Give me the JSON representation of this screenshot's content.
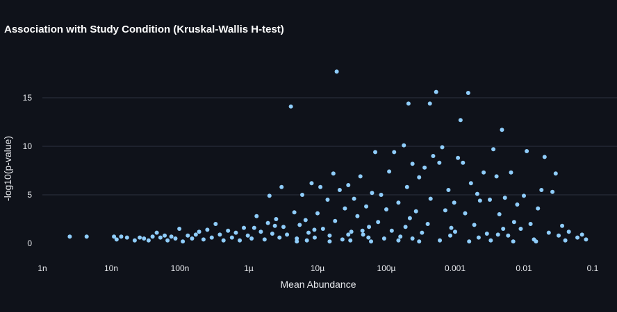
{
  "chart_data": {
    "type": "scatter",
    "title": "Association with Study Condition (Kruskal-Wallis H-test)",
    "xlabel": "Mean Abundance",
    "ylabel": "-log10(p-value)",
    "xscale": "log",
    "xlim": [
      1e-09,
      0.1
    ],
    "ylim": [
      -1,
      19
    ],
    "x_tick_values": [
      1e-09,
      1e-08,
      1e-07,
      1e-06,
      1e-05,
      0.0001,
      0.001,
      0.01,
      0.1
    ],
    "x_tick_labels": [
      "1n",
      "10n",
      "100n",
      "1µ",
      "10µ",
      "100µ",
      "0.001",
      "0.01",
      "0.1"
    ],
    "y_tick_values": [
      0,
      5,
      10,
      15
    ],
    "y_tick_labels": [
      "0",
      "5",
      "10",
      "15"
    ],
    "grid": "horizontal",
    "legend": "none",
    "marker_color": "#8fcdfb",
    "points": [
      [
        2.5e-09,
        0.7
      ],
      [
        4.4e-09,
        0.7
      ],
      [
        1.1e-08,
        0.7
      ],
      [
        1.2e-08,
        0.4
      ],
      [
        1.4e-08,
        0.7
      ],
      [
        1.7e-08,
        0.6
      ],
      [
        2.2e-08,
        0.3
      ],
      [
        2.6e-08,
        0.6
      ],
      [
        3e-08,
        0.5
      ],
      [
        3.5e-08,
        0.3
      ],
      [
        4e-08,
        0.7
      ],
      [
        4.6e-08,
        1.1
      ],
      [
        5.2e-08,
        0.6
      ],
      [
        6e-08,
        0.8
      ],
      [
        6.6e-08,
        0.3
      ],
      [
        7.5e-08,
        0.7
      ],
      [
        8.6e-08,
        0.5
      ],
      [
        9.8e-08,
        1.5
      ],
      [
        1.1e-07,
        0.2
      ],
      [
        1.3e-07,
        0.8
      ],
      [
        1.5e-07,
        0.5
      ],
      [
        1.7e-07,
        0.9
      ],
      [
        1.9e-07,
        1.2
      ],
      [
        2.2e-07,
        0.4
      ],
      [
        2.5e-07,
        1.4
      ],
      [
        2.9e-07,
        0.6
      ],
      [
        3.3e-07,
        2.0
      ],
      [
        3.8e-07,
        0.9
      ],
      [
        4.3e-07,
        0.3
      ],
      [
        5e-07,
        1.3
      ],
      [
        5.7e-07,
        0.6
      ],
      [
        6.5e-07,
        1.1
      ],
      [
        7.4e-07,
        0.3
      ],
      [
        8.5e-07,
        1.6
      ],
      [
        9.7e-07,
        0.8
      ],
      [
        1.1e-06,
        0.5
      ],
      [
        1.3e-06,
        2.8
      ],
      [
        1.5e-06,
        1.2
      ],
      [
        1.7e-06,
        0.4
      ],
      [
        1.9e-06,
        2.1
      ],
      [
        2e-06,
        4.9
      ],
      [
        2.2e-06,
        1.0
      ],
      [
        2.5e-06,
        2.5
      ],
      [
        2.8e-06,
        0.6
      ],
      [
        3e-06,
        5.8
      ],
      [
        3.2e-06,
        1.7
      ],
      [
        3.6e-06,
        0.9
      ],
      [
        4.1e-06,
        14.1
      ],
      [
        4.6e-06,
        3.2
      ],
      [
        5e-06,
        0.5
      ],
      [
        5.5e-06,
        1.9
      ],
      [
        6e-06,
        5.0
      ],
      [
        6.7e-06,
        2.4
      ],
      [
        7.4e-06,
        1.1
      ],
      [
        8.2e-06,
        6.2
      ],
      [
        9.1e-06,
        0.6
      ],
      [
        1e-05,
        3.1
      ],
      [
        1.1e-05,
        5.8
      ],
      [
        1.2e-05,
        1.5
      ],
      [
        1.4e-05,
        4.5
      ],
      [
        1.5e-05,
        0.8
      ],
      [
        1.7e-05,
        7.2
      ],
      [
        1.8e-05,
        2.3
      ],
      [
        1.9e-05,
        17.7
      ],
      [
        2.1e-05,
        5.5
      ],
      [
        2.3e-05,
        0.4
      ],
      [
        2.5e-05,
        3.6
      ],
      [
        2.8e-05,
        6.0
      ],
      [
        3.1e-05,
        1.2
      ],
      [
        3.4e-05,
        4.6
      ],
      [
        3.8e-05,
        2.8
      ],
      [
        4.2e-05,
        6.9
      ],
      [
        4.6e-05,
        0.9
      ],
      [
        5.1e-05,
        3.8
      ],
      [
        5.6e-05,
        1.7
      ],
      [
        6.2e-05,
        5.2
      ],
      [
        6.9e-05,
        9.4
      ],
      [
        7.6e-05,
        2.2
      ],
      [
        8.4e-05,
        5.0
      ],
      [
        9.3e-05,
        0.5
      ],
      [
        0.0001,
        3.5
      ],
      [
        0.00011,
        7.4
      ],
      [
        0.00012,
        1.3
      ],
      [
        0.00013,
        9.4
      ],
      [
        0.00015,
        4.2
      ],
      [
        0.00016,
        0.7
      ],
      [
        0.00018,
        10.1
      ],
      [
        0.0002,
        5.8
      ],
      [
        0.00021,
        14.4
      ],
      [
        0.00022,
        2.6
      ],
      [
        0.00024,
        8.2
      ],
      [
        0.00027,
        3.3
      ],
      [
        0.0003,
        6.8
      ],
      [
        0.00033,
        1.1
      ],
      [
        0.00036,
        7.8
      ],
      [
        0.0004,
        2.0
      ],
      [
        0.00043,
        14.4
      ],
      [
        0.00044,
        4.6
      ],
      [
        0.00048,
        9.0
      ],
      [
        0.00053,
        15.6
      ],
      [
        0.00059,
        8.3
      ],
      [
        0.00065,
        9.9
      ],
      [
        0.00072,
        3.4
      ],
      [
        0.0008,
        5.5
      ],
      [
        0.00088,
        1.6
      ],
      [
        0.00097,
        4.2
      ],
      [
        0.0011,
        8.8
      ],
      [
        0.0012,
        12.7
      ],
      [
        0.0013,
        8.3
      ],
      [
        0.0014,
        3.1
      ],
      [
        0.00155,
        15.5
      ],
      [
        0.0017,
        6.2
      ],
      [
        0.0019,
        1.9
      ],
      [
        0.0021,
        5.1
      ],
      [
        0.0023,
        4.4
      ],
      [
        0.0026,
        7.3
      ],
      [
        0.0029,
        1.0
      ],
      [
        0.0032,
        4.5
      ],
      [
        0.0036,
        9.7
      ],
      [
        0.004,
        6.9
      ],
      [
        0.0044,
        3.0
      ],
      [
        0.0048,
        11.7
      ],
      [
        0.0053,
        4.7
      ],
      [
        0.0059,
        0.8
      ],
      [
        0.0065,
        7.3
      ],
      [
        0.0072,
        2.2
      ],
      [
        0.008,
        4.0
      ],
      [
        0.009,
        1.5
      ],
      [
        0.01,
        4.9
      ],
      [
        0.011,
        9.5
      ],
      [
        0.0125,
        2.0
      ],
      [
        0.014,
        0.4
      ],
      [
        0.016,
        3.6
      ],
      [
        0.018,
        5.5
      ],
      [
        0.02,
        8.9
      ],
      [
        0.023,
        1.1
      ],
      [
        0.026,
        5.3
      ],
      [
        0.029,
        7.2
      ],
      [
        0.032,
        0.8
      ],
      [
        0.036,
        1.8
      ],
      [
        0.04,
        0.3
      ],
      [
        0.045,
        1.2
      ],
      [
        0.06,
        0.6
      ],
      [
        0.07,
        0.9
      ],
      [
        0.08,
        0.4
      ],
      [
        5e-06,
        0.2
      ],
      [
        7e-06,
        0.3
      ],
      [
        1.5e-05,
        0.2
      ],
      [
        3e-05,
        0.3
      ],
      [
        6e-05,
        0.2
      ],
      [
        0.00015,
        0.3
      ],
      [
        0.0003,
        0.2
      ],
      [
        0.0006,
        0.3
      ],
      [
        0.0016,
        0.2
      ],
      [
        0.0033,
        0.3
      ],
      [
        0.007,
        0.2
      ],
      [
        0.015,
        0.2
      ],
      [
        2.8e-05,
        0.9
      ],
      [
        5.5e-05,
        0.6
      ],
      [
        0.00024,
        0.5
      ],
      [
        0.00085,
        0.8
      ],
      [
        0.0022,
        0.6
      ],
      [
        0.0042,
        0.9
      ],
      [
        1.2e-06,
        1.6
      ],
      [
        2.4e-06,
        1.8
      ],
      [
        9e-06,
        1.4
      ],
      [
        4.5e-05,
        1.3
      ],
      [
        0.00019,
        1.7
      ],
      [
        0.001,
        1.2
      ],
      [
        0.005,
        1.5
      ]
    ]
  }
}
